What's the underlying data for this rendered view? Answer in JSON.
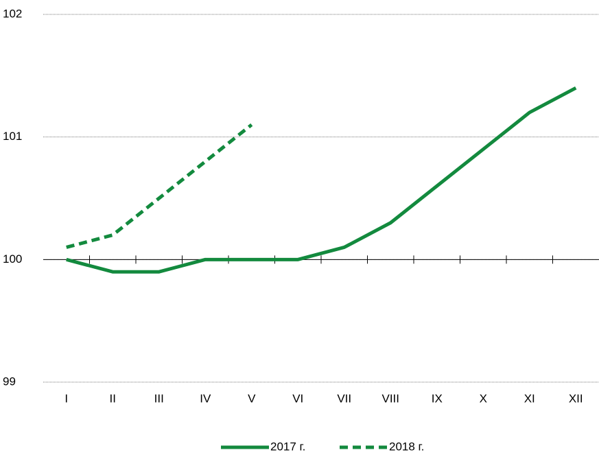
{
  "chart_data": {
    "type": "line",
    "categories": [
      "I",
      "II",
      "III",
      "IV",
      "V",
      "VI",
      "VII",
      "VIII",
      "IX",
      "X",
      "XI",
      "XII"
    ],
    "series": [
      {
        "name": "2017 г.",
        "color": "#138a3e",
        "dash": false,
        "values": [
          100,
          99.9,
          99.9,
          100,
          100,
          100,
          100.1,
          100.3,
          100.6,
          100.9,
          101.2,
          101.4
        ]
      },
      {
        "name": "2018 г.",
        "color": "#138a3e",
        "dash": true,
        "values": [
          100.1,
          100.2,
          100.5,
          100.8,
          101.1,
          null,
          null,
          null,
          null,
          null,
          null,
          null
        ]
      }
    ],
    "ylim": [
      99,
      102
    ],
    "yticks": [
      99,
      100,
      101,
      102
    ],
    "grid": true,
    "x_axis_at": 100,
    "legend": "bottom"
  }
}
